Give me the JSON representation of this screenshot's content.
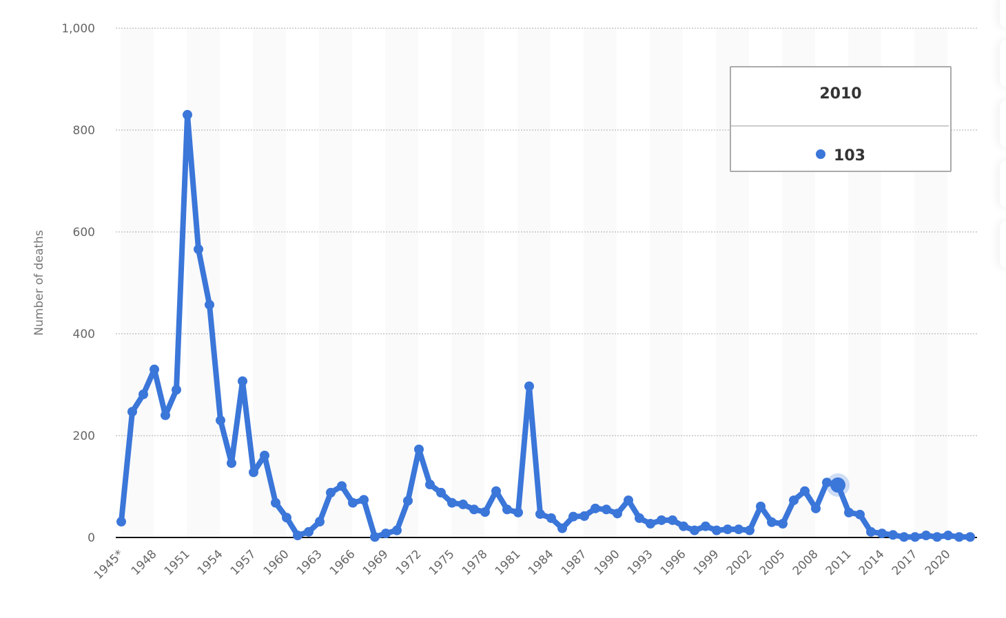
{
  "chart_data": {
    "type": "line",
    "title": "",
    "xlabel": "",
    "ylabel": "Number of deaths",
    "ylim": [
      0,
      1000
    ],
    "yticks": [
      0,
      200,
      400,
      600,
      800,
      1000
    ],
    "ytick_labels": [
      "0",
      "200",
      "400",
      "600",
      "800",
      "1,000"
    ],
    "grid": true,
    "x": [
      "1945*",
      "1946",
      "1947",
      "1948",
      "1949",
      "1950",
      "1951",
      "1952",
      "1953",
      "1954",
      "1955",
      "1956",
      "1957",
      "1958",
      "1959",
      "1960",
      "1961",
      "1962",
      "1963",
      "1964",
      "1965",
      "1966",
      "1967",
      "1968",
      "1969",
      "1970",
      "1971",
      "1972",
      "1973",
      "1974",
      "1975",
      "1976",
      "1977",
      "1978",
      "1979",
      "1980",
      "1981",
      "1982",
      "1983",
      "1984",
      "1985",
      "1986",
      "1987",
      "1988",
      "1989",
      "1990",
      "1991",
      "1992",
      "1993",
      "1994",
      "1995",
      "1996",
      "1997",
      "1998",
      "1999",
      "2000",
      "2001",
      "2002",
      "2003",
      "2004",
      "2005",
      "2006",
      "2007",
      "2008",
      "2009",
      "2010",
      "2011",
      "2012",
      "2013",
      "2014",
      "2015",
      "2016",
      "2017",
      "2018",
      "2019",
      "2020",
      "2021",
      "2022"
    ],
    "xtick_labels": [
      "1945*",
      "1948",
      "1951",
      "1954",
      "1957",
      "1960",
      "1963",
      "1966",
      "1969",
      "1972",
      "1975",
      "1978",
      "1981",
      "1984",
      "1987",
      "1990",
      "1993",
      "1996",
      "1999",
      "2002",
      "2005",
      "2008",
      "2011",
      "2014",
      "2017",
      "2020"
    ],
    "series": [
      {
        "color": "#3b76d9",
        "values": [
          31,
          247,
          281,
          330,
          240,
          290,
          830,
          566,
          457,
          230,
          146,
          307,
          128,
          161,
          68,
          39,
          4,
          11,
          31,
          88,
          101,
          68,
          74,
          1,
          8,
          14,
          72,
          173,
          104,
          88,
          68,
          65,
          55,
          50,
          91,
          55,
          49,
          297,
          46,
          38,
          18,
          41,
          42,
          57,
          55,
          47,
          73,
          38,
          27,
          34,
          34,
          22,
          14,
          22,
          14,
          16,
          16,
          14,
          61,
          30,
          27,
          73,
          91,
          57,
          108,
          103,
          49,
          45,
          11,
          8,
          5,
          1,
          1,
          4,
          1,
          4,
          1,
          1
        ]
      }
    ],
    "tooltip": {
      "title": "2010",
      "value": "103"
    },
    "highlight_index": 65
  }
}
